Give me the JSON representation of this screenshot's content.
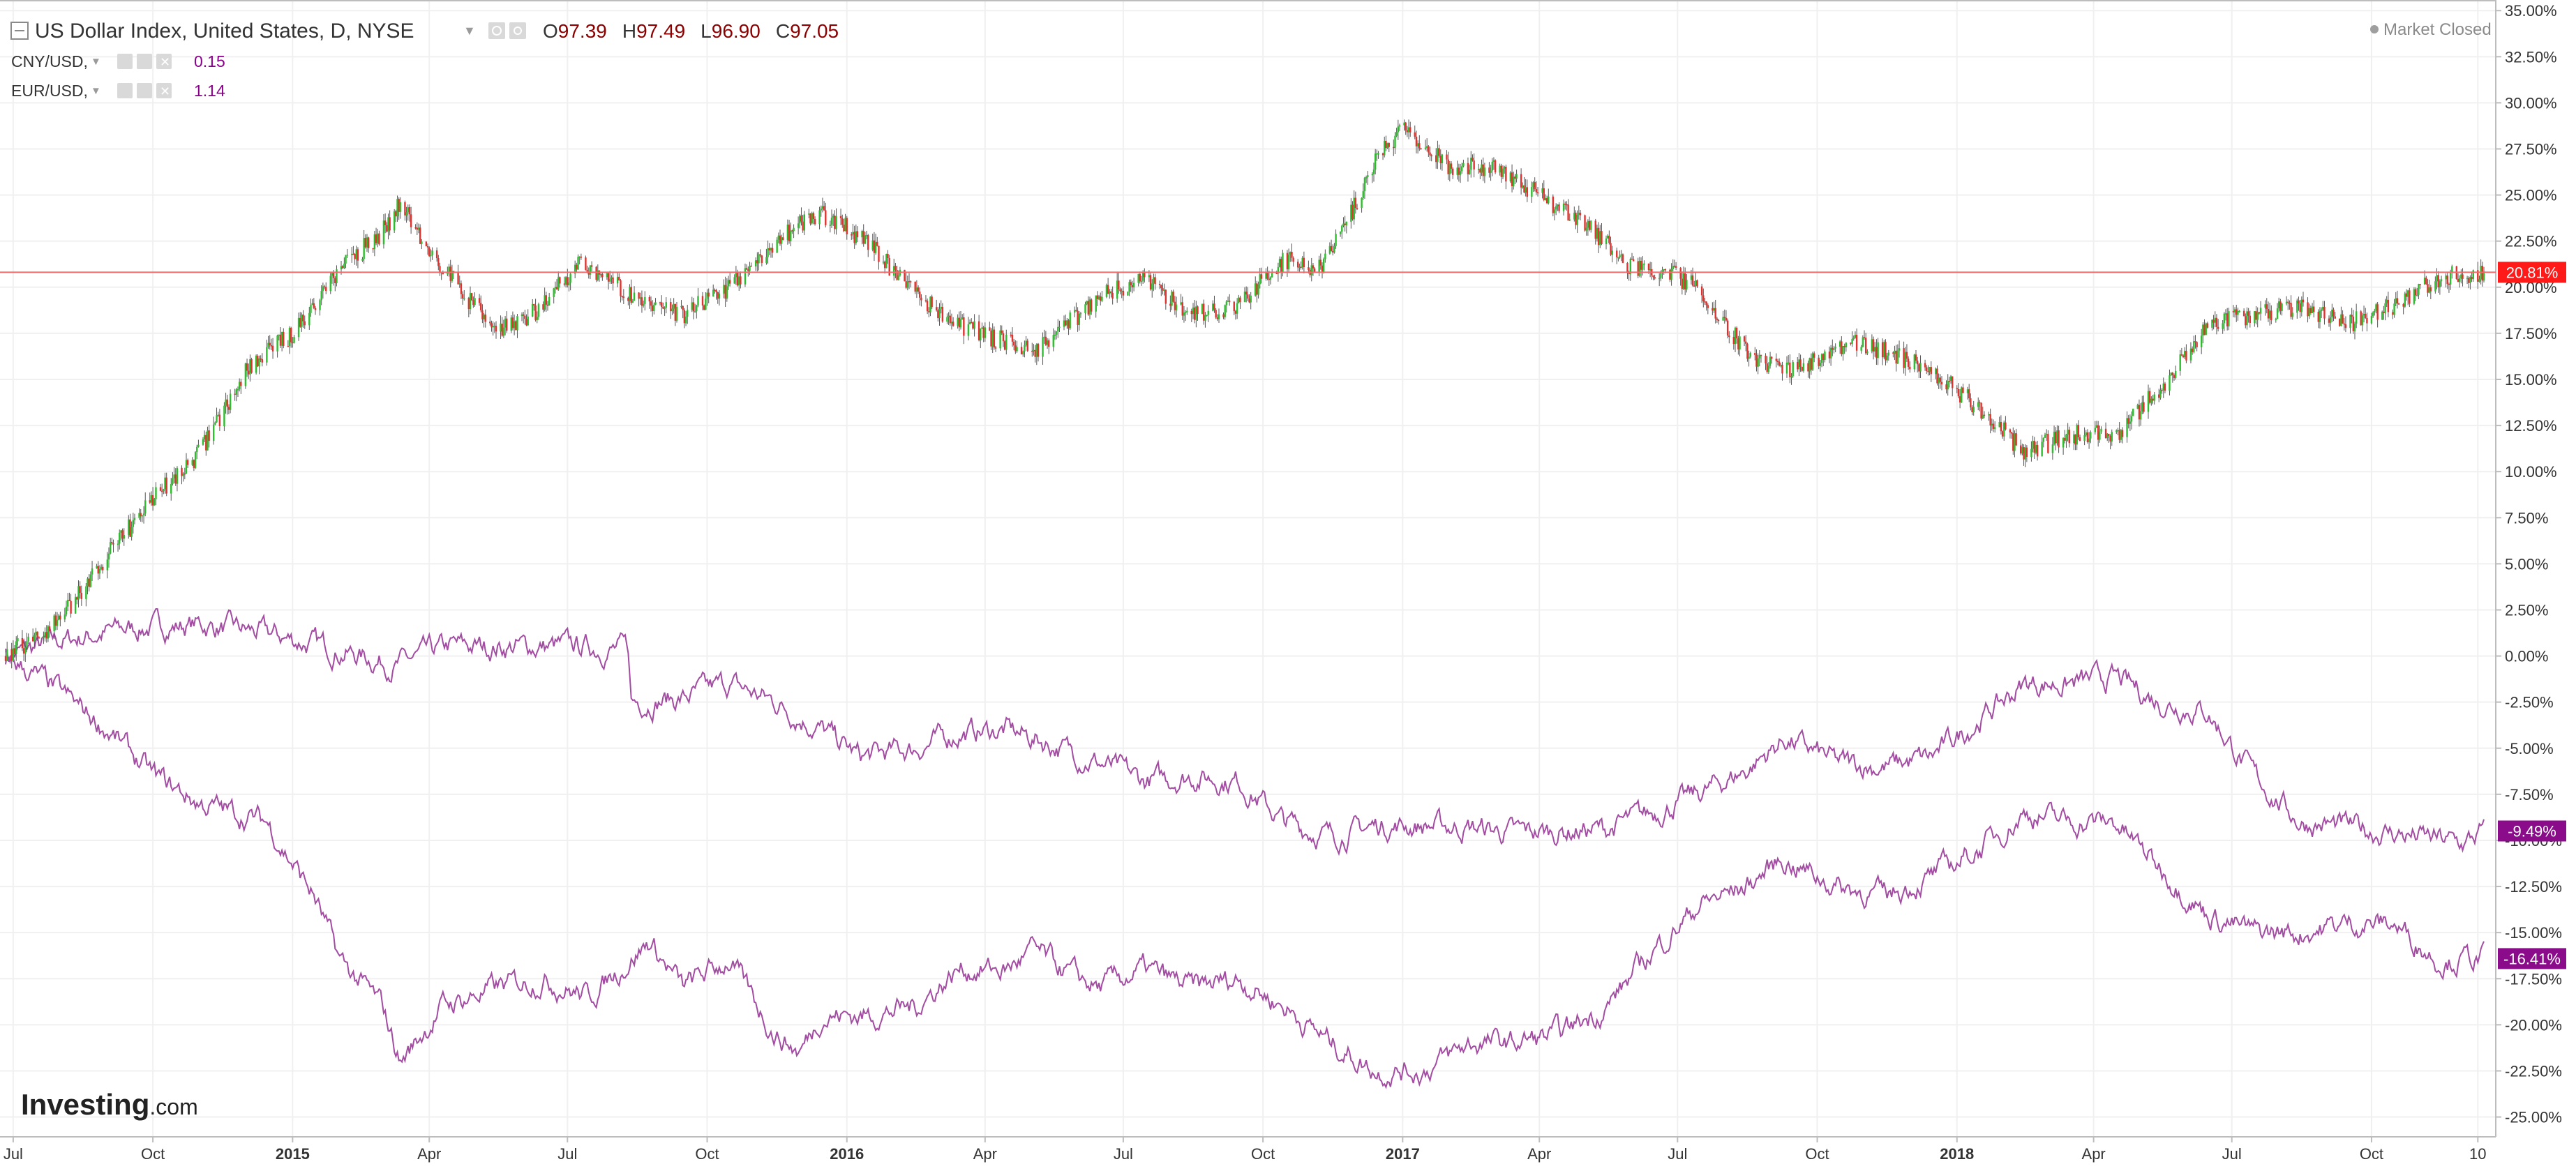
{
  "legend": {
    "main": {
      "title": "US Dollar Index, United States, D, NYSE",
      "o_label": "O",
      "o_value": "97.39",
      "h_label": "H",
      "h_value": "97.49",
      "l_label": "L",
      "l_value": "96.90",
      "c_label": "C",
      "c_value": "97.05"
    },
    "studies": [
      {
        "name": "CNY/USD,",
        "value": "0.15"
      },
      {
        "name": "EUR/USD,",
        "value": "1.14"
      }
    ]
  },
  "status": "Market Closed",
  "logo": {
    "bold": "Investing",
    "suffix": ".com"
  },
  "colors": {
    "up": "#2ebd2e",
    "down": "#e0312c",
    "compare_line": "#a24ca2",
    "current_line": "#f06a6a",
    "current_badge": "#ff1a1a",
    "compare_badge": "#8b0c8b",
    "grid": "#f0f0f0",
    "axis_text": "#333333",
    "legend_title": "#333333",
    "ohlc_value": "#8b0000",
    "study_value": "#8b008b"
  },
  "chart_data": {
    "type": "candlestick+line",
    "y_unit": "percent change",
    "ylim": [
      -26,
      35.5
    ],
    "y_ticks": [
      "35.00%",
      "32.50%",
      "30.00%",
      "27.50%",
      "25.00%",
      "22.50%",
      "20.00%",
      "17.50%",
      "15.00%",
      "12.50%",
      "10.00%",
      "7.50%",
      "5.00%",
      "2.50%",
      "0.00%",
      "-2.50%",
      "-5.00%",
      "-7.50%",
      "-10.00%",
      "-12.50%",
      "-15.00%",
      "-17.50%",
      "-20.00%",
      "-22.50%",
      "-25.00%"
    ],
    "y_tick_values": [
      35,
      32.5,
      30,
      27.5,
      25,
      22.5,
      20,
      17.5,
      15,
      12.5,
      10,
      7.5,
      5,
      2.5,
      0,
      -2.5,
      -5,
      -7.5,
      -10,
      -12.5,
      -15,
      -17.5,
      -20,
      -22.5,
      -25
    ],
    "x_ticks": [
      {
        "label": "Jul",
        "date": "2014-07-01",
        "bold": false
      },
      {
        "label": "Oct",
        "date": "2014-10-01",
        "bold": false
      },
      {
        "label": "2015",
        "date": "2015-01-01",
        "bold": true
      },
      {
        "label": "Apr",
        "date": "2015-04-01",
        "bold": false
      },
      {
        "label": "Jul",
        "date": "2015-07-01",
        "bold": false
      },
      {
        "label": "Oct",
        "date": "2015-10-01",
        "bold": false
      },
      {
        "label": "2016",
        "date": "2016-01-01",
        "bold": true
      },
      {
        "label": "Apr",
        "date": "2016-04-01",
        "bold": false
      },
      {
        "label": "Jul",
        "date": "2016-07-01",
        "bold": false
      },
      {
        "label": "Oct",
        "date": "2016-10-01",
        "bold": false
      },
      {
        "label": "2017",
        "date": "2017-01-01",
        "bold": true
      },
      {
        "label": "Apr",
        "date": "2017-04-01",
        "bold": false
      },
      {
        "label": "Jul",
        "date": "2017-07-01",
        "bold": false
      },
      {
        "label": "Oct",
        "date": "2017-10-01",
        "bold": false
      },
      {
        "label": "2018",
        "date": "2018-01-01",
        "bold": true
      },
      {
        "label": "Apr",
        "date": "2018-04-01",
        "bold": false
      },
      {
        "label": "Jul",
        "date": "2018-07-01",
        "bold": false
      },
      {
        "label": "Oct",
        "date": "2018-10-01",
        "bold": false
      },
      {
        "label": "10",
        "date": "2018-12-10",
        "bold": false
      }
    ],
    "x_range": [
      "2014-06-26",
      "2018-12-14"
    ],
    "series": [
      {
        "name": "US Dollar Index",
        "style": "candles",
        "current_value": 20.81,
        "current_label": "20.81%",
        "x": [
          "2014-06-26",
          "2014-08-01",
          "2014-09-01",
          "2014-10-01",
          "2014-11-01",
          "2014-12-01",
          "2015-01-01",
          "2015-02-01",
          "2015-03-01",
          "2015-03-13",
          "2015-04-10",
          "2015-05-15",
          "2015-06-15",
          "2015-07-10",
          "2015-08-20",
          "2015-09-15",
          "2015-10-15",
          "2015-11-10",
          "2015-12-01",
          "2015-12-15",
          "2016-01-15",
          "2016-02-15",
          "2016-03-15",
          "2016-04-15",
          "2016-05-03",
          "2016-06-01",
          "2016-06-15",
          "2016-07-15",
          "2016-08-15",
          "2016-09-15",
          "2016-10-15",
          "2016-11-09",
          "2016-11-25",
          "2016-12-15",
          "2017-01-01",
          "2017-02-01",
          "2017-03-01",
          "2017-04-01",
          "2017-05-01",
          "2017-06-01",
          "2017-06-20",
          "2017-07-15",
          "2017-08-15",
          "2017-09-08",
          "2017-10-01",
          "2017-10-25",
          "2017-11-15",
          "2017-12-15",
          "2018-01-15",
          "2018-02-15",
          "2018-03-15",
          "2018-04-15",
          "2018-05-15",
          "2018-06-15",
          "2018-07-15",
          "2018-08-15",
          "2018-09-15",
          "2018-10-15",
          "2018-11-15",
          "2018-12-14"
        ],
        "y": [
          0,
          2,
          5.5,
          8.5,
          11,
          15.5,
          17.5,
          21,
          23,
          24.5,
          21,
          17.5,
          19,
          21.5,
          19,
          18.5,
          20,
          22,
          23.5,
          24,
          22.5,
          19.5,
          18,
          17,
          16.5,
          18.5,
          19.5,
          20.5,
          18.5,
          19,
          21.5,
          21,
          23.5,
          27,
          28.5,
          26.5,
          26.5,
          25,
          23.5,
          21,
          21,
          20,
          16.5,
          15.5,
          16,
          17,
          16.5,
          15.5,
          13.5,
          11,
          12,
          12,
          14.5,
          18,
          18.5,
          19,
          18,
          19,
          20.5,
          20.81
        ]
      },
      {
        "name": "CNY/USD",
        "style": "line",
        "current_value": -9.49,
        "current_label": "-9.49%",
        "x": [
          "2014-06-26",
          "2014-08-01",
          "2014-09-15",
          "2014-11-01",
          "2014-12-15",
          "2015-02-01",
          "2015-03-10",
          "2015-04-15",
          "2015-05-15",
          "2015-06-15",
          "2015-07-15",
          "2015-08-10",
          "2015-08-12",
          "2015-09-15",
          "2015-10-15",
          "2015-11-15",
          "2015-12-15",
          "2016-01-10",
          "2016-02-15",
          "2016-03-15",
          "2016-04-15",
          "2016-05-15",
          "2016-06-15",
          "2016-07-15",
          "2016-08-15",
          "2016-09-15",
          "2016-10-15",
          "2016-11-15",
          "2016-12-15",
          "2017-01-15",
          "2017-02-15",
          "2017-03-15",
          "2017-04-15",
          "2017-05-15",
          "2017-06-15",
          "2017-07-15",
          "2017-08-15",
          "2017-09-10",
          "2017-10-15",
          "2017-11-15",
          "2017-12-15",
          "2018-01-15",
          "2018-02-15",
          "2018-03-15",
          "2018-04-15",
          "2018-05-15",
          "2018-06-15",
          "2018-07-15",
          "2018-08-15",
          "2018-09-15",
          "2018-10-15",
          "2018-11-15",
          "2018-12-01",
          "2018-12-14"
        ],
        "y": [
          0,
          0.8,
          1.5,
          1.7,
          1.2,
          0.3,
          -0.5,
          0.5,
          0.5,
          0.5,
          0.5,
          0.3,
          -2.5,
          -2.3,
          -1.5,
          -2.5,
          -4,
          -5.5,
          -5,
          -4.2,
          -4,
          -4.8,
          -5.8,
          -6.8,
          -6.5,
          -6.8,
          -9,
          -9.8,
          -9.2,
          -9.2,
          -9.3,
          -9.6,
          -9.5,
          -9.4,
          -8.5,
          -7.5,
          -6.2,
          -4.5,
          -5.8,
          -6,
          -5.5,
          -3.5,
          -1.5,
          -1.5,
          -1.2,
          -2.5,
          -3,
          -6.5,
          -9,
          -9.3,
          -9.6,
          -10,
          -10.2,
          -9.49
        ]
      },
      {
        "name": "EUR/USD",
        "style": "line",
        "current_value": -16.41,
        "current_label": "-16.41%",
        "x": [
          "2014-06-26",
          "2014-08-01",
          "2014-09-01",
          "2014-10-01",
          "2014-11-01",
          "2014-12-15",
          "2015-01-15",
          "2015-02-01",
          "2015-03-01",
          "2015-03-13",
          "2015-04-10",
          "2015-05-15",
          "2015-06-15",
          "2015-07-15",
          "2015-08-24",
          "2015-09-15",
          "2015-10-15",
          "2015-11-15",
          "2015-12-01",
          "2015-12-15",
          "2016-01-15",
          "2016-02-15",
          "2016-03-15",
          "2016-04-15",
          "2016-05-03",
          "2016-06-01",
          "2016-06-15",
          "2016-07-15",
          "2016-08-15",
          "2016-09-15",
          "2016-10-15",
          "2016-11-15",
          "2016-12-15",
          "2017-01-15",
          "2017-02-15",
          "2017-03-15",
          "2017-04-15",
          "2017-05-15",
          "2017-06-15",
          "2017-07-15",
          "2017-08-15",
          "2017-09-08",
          "2017-10-15",
          "2017-11-15",
          "2017-12-15",
          "2018-01-15",
          "2018-02-15",
          "2018-03-15",
          "2018-04-15",
          "2018-05-15",
          "2018-06-15",
          "2018-07-15",
          "2018-08-15",
          "2018-09-15",
          "2018-10-15",
          "2018-11-15",
          "2018-12-14"
        ],
        "y": [
          0,
          -2,
          -4,
          -6.5,
          -8,
          -9,
          -13,
          -16.5,
          -19,
          -22,
          -19,
          -18,
          -17.5,
          -18.5,
          -15.5,
          -18,
          -16.5,
          -20.5,
          -21.5,
          -19.5,
          -19.5,
          -19,
          -17,
          -17,
          -16,
          -17.5,
          -18,
          -17,
          -18,
          -17.5,
          -19,
          -21,
          -22.5,
          -22.5,
          -21,
          -21,
          -20.5,
          -19,
          -16,
          -13.5,
          -12.5,
          -11,
          -12.5,
          -13,
          -12,
          -10.5,
          -8.5,
          -9,
          -9,
          -11.5,
          -14,
          -15,
          -15,
          -14.5,
          -14.5,
          -16.5,
          -16.41
        ]
      }
    ]
  }
}
